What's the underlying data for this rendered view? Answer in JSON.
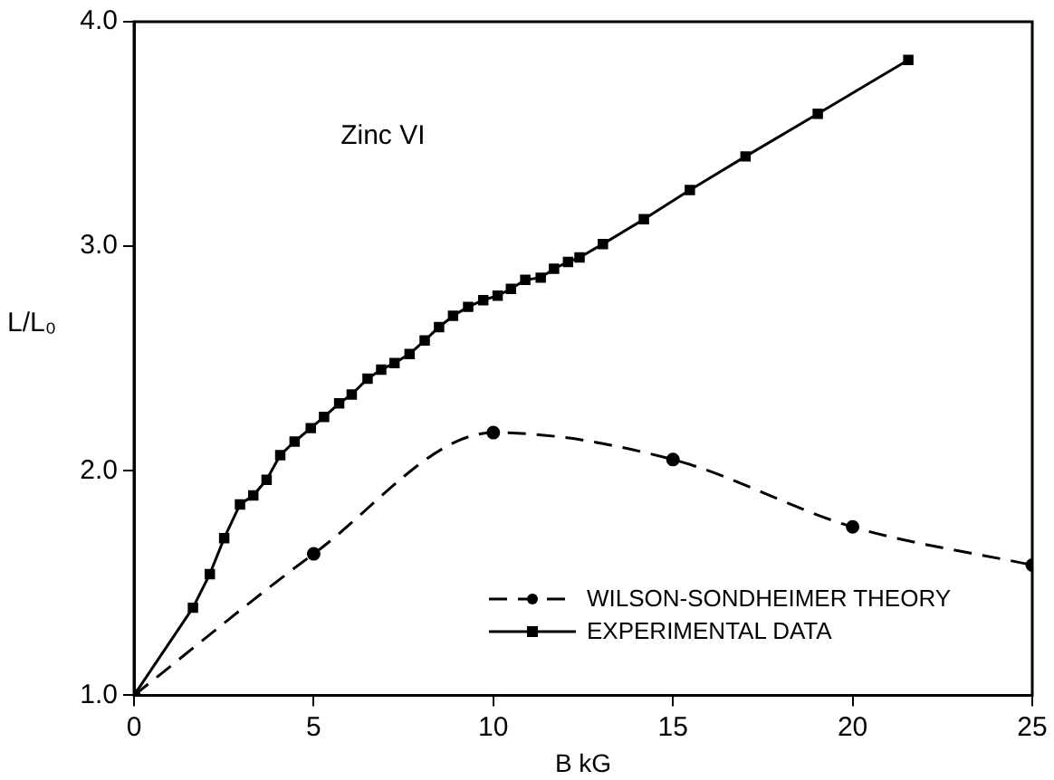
{
  "chart_data": {
    "type": "line",
    "xlabel": "B kG",
    "ylabel": "L/L₀",
    "annotations": [
      "Zinc VI"
    ],
    "xlim": [
      0,
      25
    ],
    "xticks": [
      0,
      5,
      10,
      15,
      20,
      25
    ],
    "ylim": [
      1,
      4
    ],
    "yticks": [
      {
        "value": 1,
        "label": "1.0"
      },
      {
        "value": 2,
        "label": "2.0"
      },
      {
        "value": 3,
        "label": "3.0"
      },
      {
        "value": 4,
        "label": "4.0"
      }
    ],
    "grid": false,
    "legend": "bottom right",
    "series": [
      {
        "name": "WILSON-SONDHEIMER THEORY",
        "color": "#000000",
        "marker": "circle",
        "line_style": "dashed",
        "x": [
          0,
          5,
          10,
          15,
          20,
          25
        ],
        "values": [
          1.0,
          1.63,
          2.17,
          2.05,
          1.75,
          1.58
        ]
      },
      {
        "name": "EXPERIMENTAL DATA",
        "color": "#000000",
        "marker": "square",
        "line_style": "solid",
        "x": [
          0,
          1.64,
          2.11,
          2.51,
          2.95,
          3.32,
          3.69,
          4.07,
          4.47,
          4.92,
          5.29,
          5.71,
          6.06,
          6.5,
          6.88,
          7.25,
          7.67,
          8.09,
          8.49,
          8.88,
          9.3,
          9.72,
          10.12,
          10.49,
          10.89,
          11.32,
          11.69,
          12.08,
          12.4,
          13.05,
          14.19,
          15.47,
          17.02,
          19.03,
          21.55
        ],
        "values": [
          1.0,
          1.39,
          1.54,
          1.7,
          1.85,
          1.89,
          1.96,
          2.07,
          2.13,
          2.19,
          2.24,
          2.3,
          2.34,
          2.41,
          2.45,
          2.48,
          2.52,
          2.58,
          2.64,
          2.69,
          2.73,
          2.76,
          2.78,
          2.81,
          2.85,
          2.86,
          2.9,
          2.93,
          2.95,
          3.01,
          3.12,
          3.25,
          3.4,
          3.59,
          3.83
        ]
      }
    ]
  }
}
